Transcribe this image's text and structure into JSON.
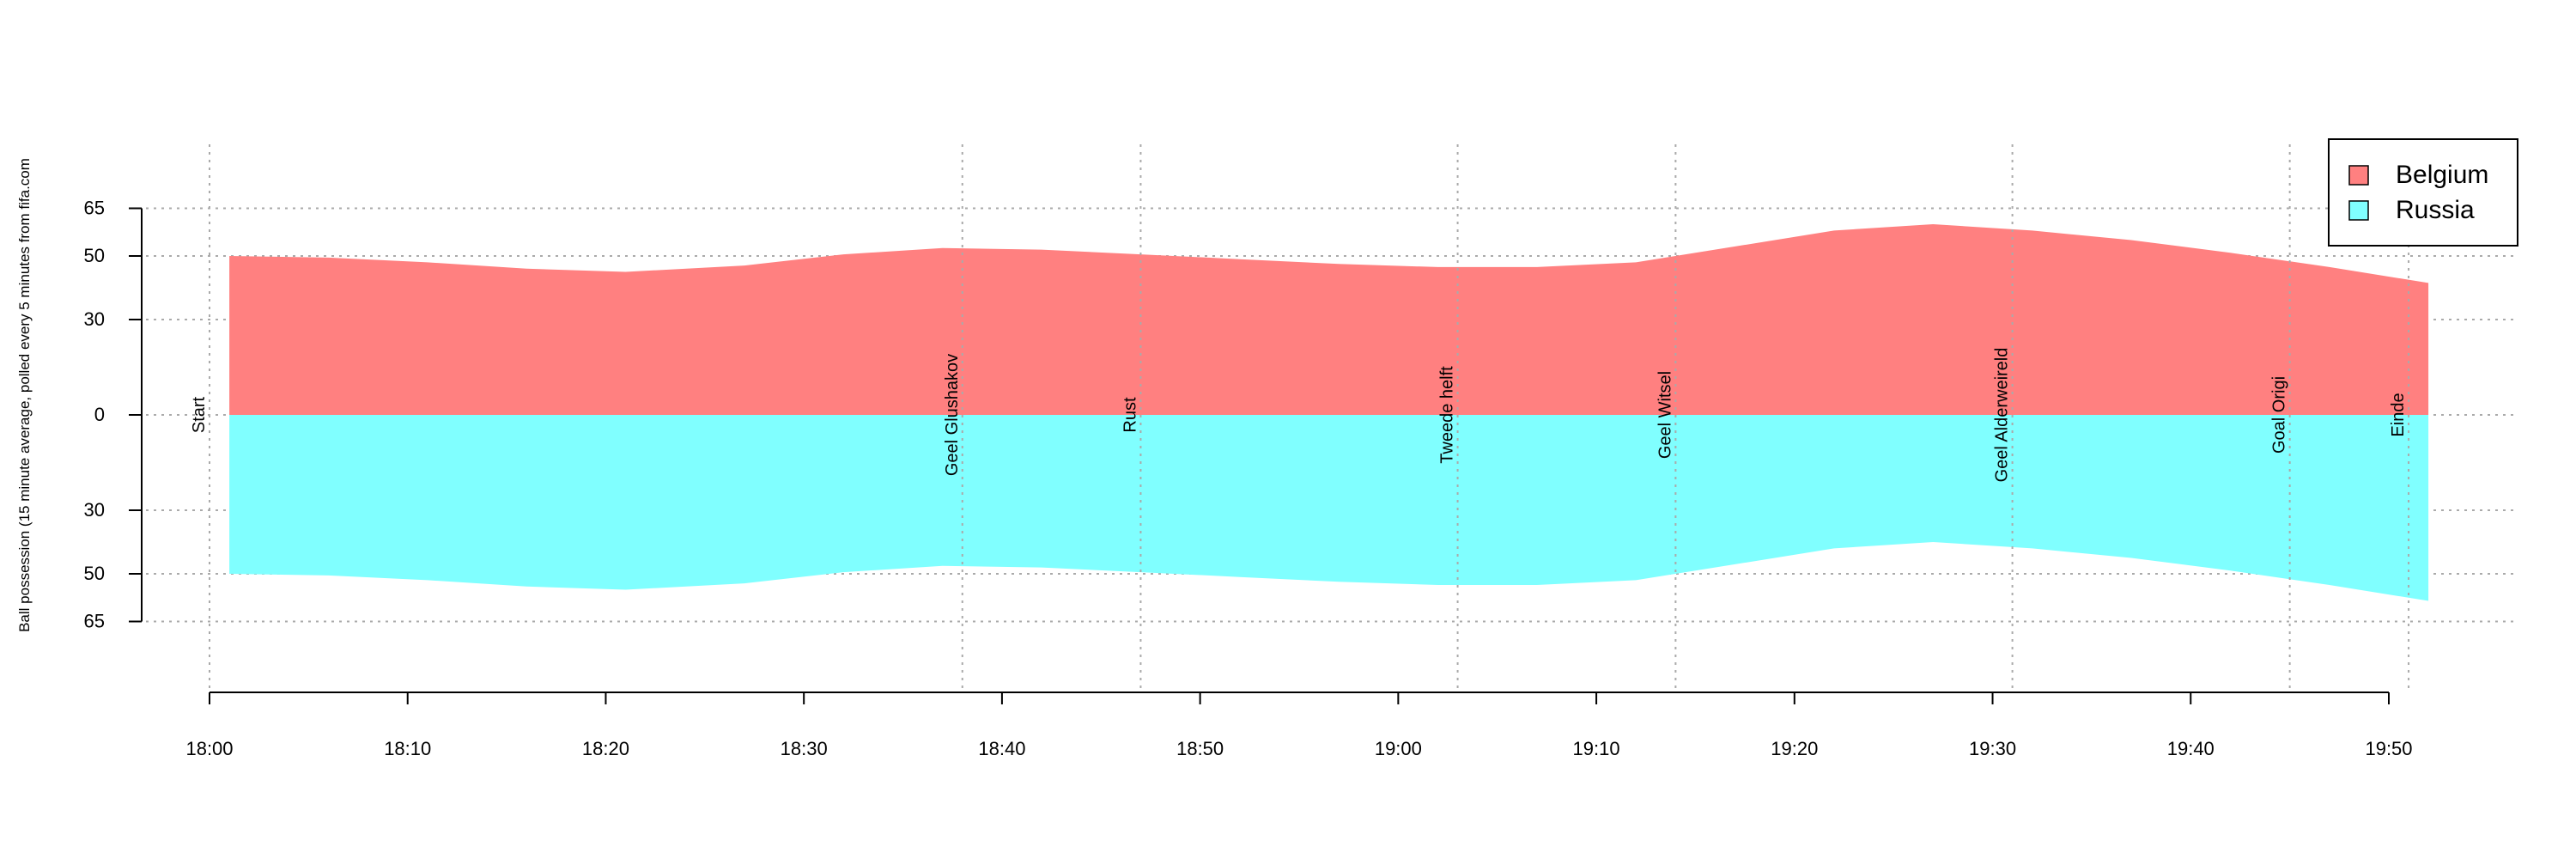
{
  "chart_data": {
    "type": "area",
    "ylabel": "Ball possession (15 minute average, polled every 5 minutes from fifa.com",
    "x_ticks": [
      "18:00",
      "18:10",
      "18:20",
      "18:30",
      "18:40",
      "18:50",
      "19:00",
      "19:10",
      "19:20",
      "19:30",
      "19:40",
      "19:50"
    ],
    "xlim": [
      "18:00",
      "19:50"
    ],
    "y_ticks_top": [
      "65",
      "50",
      "30",
      "0"
    ],
    "y_ticks_bottom": [
      "30",
      "50",
      "65"
    ],
    "grid": true,
    "legend_position": "top-right",
    "x": [
      "18:01",
      "18:06",
      "18:11",
      "18:16",
      "18:21",
      "18:27",
      "18:32",
      "18:37",
      "18:42",
      "18:47",
      "18:52",
      "18:57",
      "19:02",
      "19:07",
      "19:12",
      "19:17",
      "19:22",
      "19:27",
      "19:32",
      "19:37",
      "19:42",
      "19:47",
      "19:52"
    ],
    "series": [
      {
        "name": "Belgium",
        "color": "#ff8080",
        "direction": "up",
        "values": [
          50,
          49.5,
          48,
          46,
          45,
          47,
          50.5,
          52.5,
          52,
          50.5,
          49,
          47.5,
          46.5,
          46.5,
          48,
          53,
          58,
          60,
          58,
          55,
          51,
          46.5,
          41.5
        ]
      },
      {
        "name": "Russia",
        "color": "#80ffff",
        "direction": "down",
        "values": [
          50,
          50.5,
          52,
          54,
          55,
          53,
          49.5,
          47.5,
          48,
          49.5,
          51,
          52.5,
          53.5,
          53.5,
          52,
          47,
          42,
          40,
          42,
          45,
          49,
          53.5,
          58.5
        ]
      }
    ],
    "events": [
      {
        "time": "18:00",
        "label": "Start",
        "side": "up"
      },
      {
        "time": "18:38",
        "label": "Geel Glushakov",
        "side": "both"
      },
      {
        "time": "18:47",
        "label": "Rust",
        "side": "up"
      },
      {
        "time": "19:03",
        "label": "Tweede helft",
        "side": "both"
      },
      {
        "time": "19:14",
        "label": "Geel Witsel",
        "side": "both"
      },
      {
        "time": "19:31",
        "label": "Geel Alderweireld",
        "side": "both"
      },
      {
        "time": "19:45",
        "label": "Goal Origi",
        "side": "both"
      },
      {
        "time": "19:51",
        "label": "Einde",
        "side": "both"
      }
    ]
  }
}
